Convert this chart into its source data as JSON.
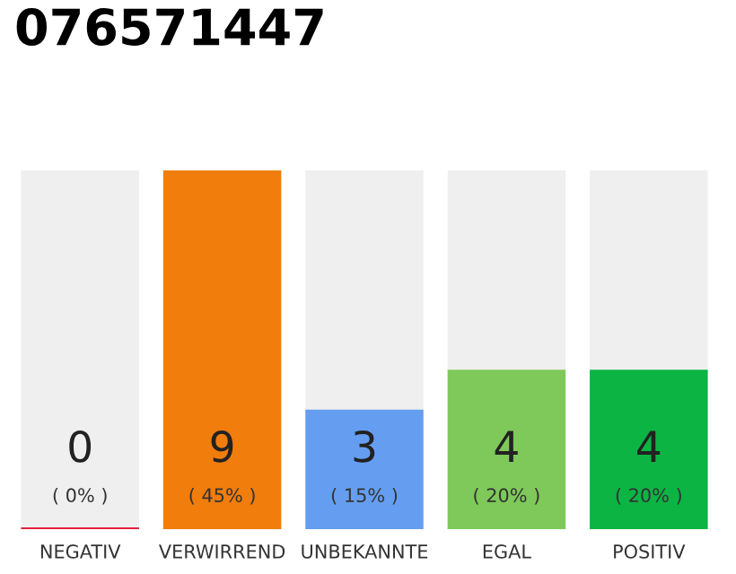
{
  "chart_data": {
    "type": "bar",
    "title": "076571447",
    "categories": [
      "NEGATIV",
      "VERWIRREND",
      "UNBEKANNTE",
      "EGAL",
      "POSITIV"
    ],
    "values": [
      0,
      9,
      3,
      4,
      4
    ],
    "colors": [
      "#e8213c",
      "#f07d0c",
      "#659ef0",
      "#7ec95a",
      "#0cb444"
    ],
    "ylim": [
      0,
      9
    ],
    "value_labels": [
      "0\n( 0% )",
      "9\n( 45% )",
      "3\n( 15% )",
      "4\n( 20% )",
      "4\n( 20% )"
    ],
    "grid": false,
    "legend": false
  }
}
